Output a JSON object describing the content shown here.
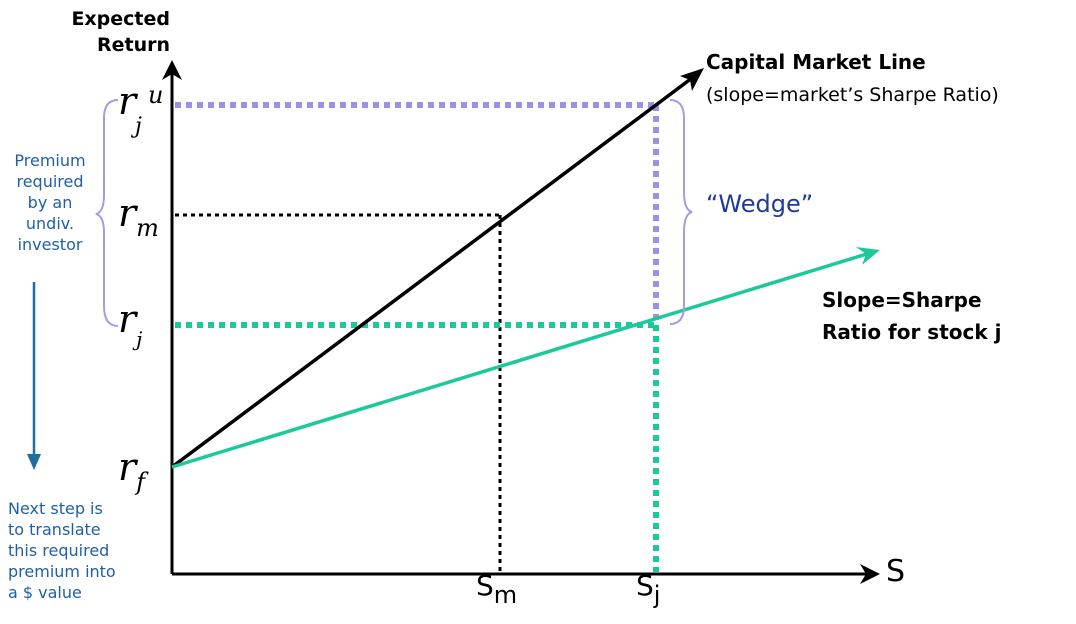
{
  "axes": {
    "y_label_line1": "Expected",
    "y_label_line2": "Return",
    "x_label": "S"
  },
  "y_ticks": {
    "r_ju_base": "r",
    "r_ju_sub": "j",
    "r_ju_sup": "u",
    "r_m_base": "r",
    "r_m_sub": "m",
    "r_j_base": "r",
    "r_j_sub": "j",
    "r_f_base": "r",
    "r_f_sub": "f"
  },
  "x_ticks": {
    "s_m_base": "S",
    "s_m_sub": "m",
    "s_j_base": "S",
    "s_j_sub": "j"
  },
  "cml": {
    "title": "Capital Market Line",
    "subtitle": "(slope=market’s Sharpe Ratio)"
  },
  "stock_line": {
    "label_line1": "Slope=Sharpe",
    "label_line2": "Ratio for stock j"
  },
  "wedge_label": "“Wedge”",
  "premium_note": {
    "line1": "Premium",
    "line2": "required",
    "line3": "by an",
    "line4": "undiv.",
    "line5": "investor"
  },
  "next_step_note": {
    "line1": "Next step is",
    "line2": "to translate",
    "line3": "this required",
    "line4": "premium into",
    "line5": "a $ value"
  },
  "colors": {
    "cml": "#000000",
    "stock_line": "#1bc99a",
    "wedge_bracket": "#a89ae8",
    "upper_guide": "#9b91e6",
    "note_text": "#1f5fa8",
    "down_arrow": "#1f6ea0",
    "wedge_text": "#1f3b99"
  }
}
